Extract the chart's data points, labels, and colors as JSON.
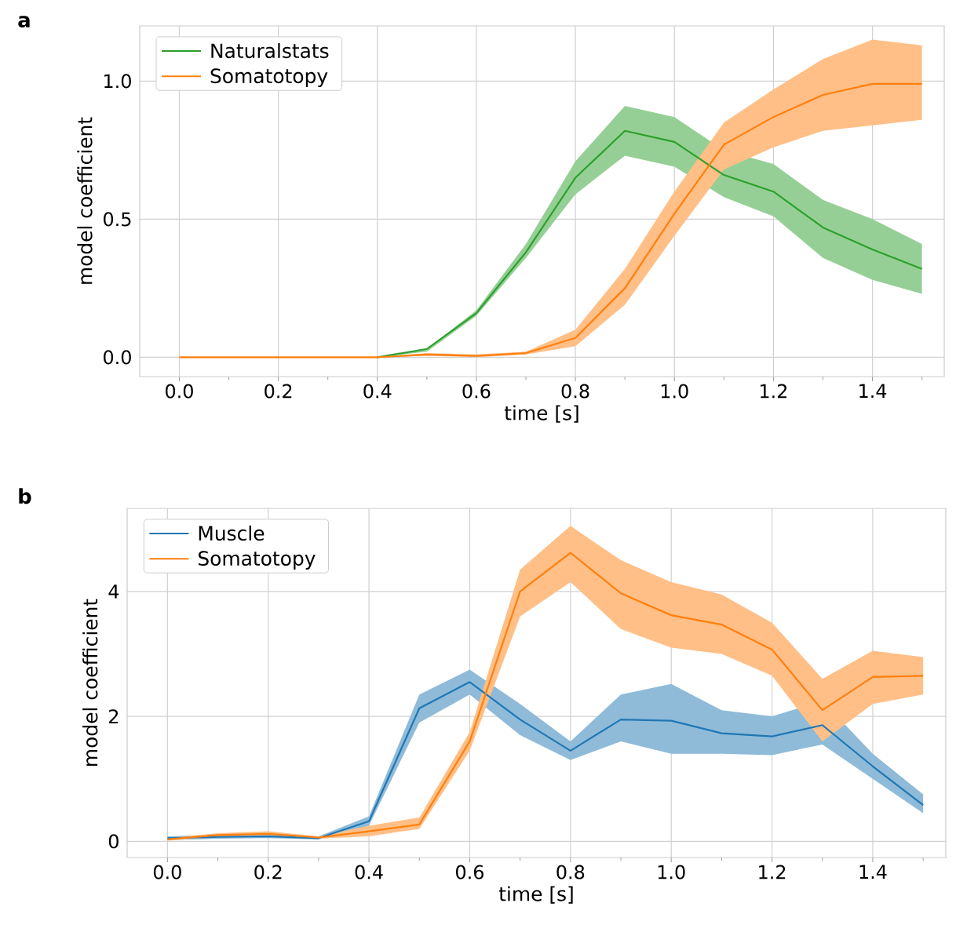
{
  "chart_data": [
    {
      "type": "line",
      "annotations": [
        "a"
      ],
      "xlabel": "time [s]",
      "ylabel": "model coefficient",
      "x": [
        0,
        0.1,
        0.2,
        0.3,
        0.4,
        0.5,
        0.6,
        0.7,
        0.8,
        0.9,
        1.0,
        1.1,
        1.2,
        1.3,
        1.4,
        1.5
      ],
      "xlim": [
        -0.08,
        1.545
      ],
      "ylim": [
        -0.07,
        1.2
      ],
      "xticks": [
        {
          "value": 0,
          "label": "0.0"
        },
        {
          "value": 0.1,
          "label": null
        },
        {
          "value": 0.2,
          "label": "0.2"
        },
        {
          "value": 0.3,
          "label": null
        },
        {
          "value": 0.4,
          "label": "0.4"
        },
        {
          "value": 0.5,
          "label": null
        },
        {
          "value": 0.6,
          "label": "0.6"
        },
        {
          "value": 0.7,
          "label": null
        },
        {
          "value": 0.8,
          "label": "0.8"
        },
        {
          "value": 0.9,
          "label": null
        },
        {
          "value": 1.0,
          "label": "1.0"
        },
        {
          "value": 1.1,
          "label": null
        },
        {
          "value": 1.2,
          "label": "1.2"
        },
        {
          "value": 1.3,
          "label": null
        },
        {
          "value": 1.4,
          "label": "1.4"
        },
        {
          "value": 1.5,
          "label": null
        }
      ],
      "yticks": [
        {
          "value": 0,
          "label": "0.0"
        },
        {
          "value": 0.5,
          "label": "0.5"
        },
        {
          "value": 1.0,
          "label": "1.0"
        }
      ],
      "grid": true,
      "legend": "top left",
      "series": [
        {
          "name": "Naturalstats",
          "color": "#2ca02c",
          "values": [
            null,
            null,
            null,
            null,
            0,
            0.03,
            0.16,
            0.38,
            0.65,
            0.82,
            0.78,
            0.66,
            0.6,
            0.47,
            0.39,
            0.32
          ],
          "lower": [
            0,
            0,
            0,
            0,
            0,
            0.02,
            0.15,
            0.36,
            0.59,
            0.73,
            0.69,
            0.58,
            0.51,
            0.36,
            0.28,
            0.23
          ],
          "upper": [
            0,
            0,
            0,
            0,
            0,
            0.03,
            0.17,
            0.41,
            0.71,
            0.91,
            0.87,
            0.75,
            0.7,
            0.57,
            0.5,
            0.41
          ]
        },
        {
          "name": "Somatotopy",
          "color": "#ff7f0e",
          "values": [
            0,
            0,
            0,
            0,
            0,
            0.01,
            0.005,
            0.015,
            0.07,
            0.25,
            0.52,
            0.77,
            0.87,
            0.95,
            0.99,
            0.99
          ],
          "lower": [
            0,
            0,
            0,
            0,
            0,
            0.005,
            0,
            0.01,
            0.04,
            0.19,
            0.44,
            0.68,
            0.76,
            0.82,
            0.84,
            0.86
          ],
          "upper": [
            0,
            0,
            0,
            0,
            0,
            0.015,
            0.01,
            0.02,
            0.1,
            0.32,
            0.6,
            0.85,
            0.97,
            1.08,
            1.15,
            1.13
          ]
        }
      ]
    },
    {
      "type": "line",
      "annotations": [
        "b"
      ],
      "xlabel": "time [s]",
      "ylabel": "model coefficient",
      "x": [
        0,
        0.1,
        0.2,
        0.3,
        0.4,
        0.5,
        0.6,
        0.7,
        0.8,
        0.9,
        1.0,
        1.1,
        1.2,
        1.3,
        1.4,
        1.5
      ],
      "xlim": [
        -0.08,
        1.545
      ],
      "ylim": [
        -0.26,
        5.33
      ],
      "xticks": [
        {
          "value": 0,
          "label": "0.0"
        },
        {
          "value": 0.1,
          "label": null
        },
        {
          "value": 0.2,
          "label": "0.2"
        },
        {
          "value": 0.3,
          "label": null
        },
        {
          "value": 0.4,
          "label": "0.4"
        },
        {
          "value": 0.5,
          "label": null
        },
        {
          "value": 0.6,
          "label": "0.6"
        },
        {
          "value": 0.7,
          "label": null
        },
        {
          "value": 0.8,
          "label": "0.8"
        },
        {
          "value": 0.9,
          "label": null
        },
        {
          "value": 1.0,
          "label": "1.0"
        },
        {
          "value": 1.1,
          "label": null
        },
        {
          "value": 1.2,
          "label": "1.2"
        },
        {
          "value": 1.3,
          "label": null
        },
        {
          "value": 1.4,
          "label": "1.4"
        },
        {
          "value": 1.5,
          "label": null
        }
      ],
      "yticks": [
        0,
        2,
        4
      ],
      "grid": true,
      "legend": "top left",
      "series": [
        {
          "name": "Muscle",
          "color": "#1f77b4",
          "values": [
            0.05,
            0.07,
            0.08,
            0.05,
            0.32,
            2.13,
            2.55,
            1.95,
            1.45,
            1.95,
            1.93,
            1.73,
            1.68,
            1.86,
            1.2,
            0.58
          ],
          "lower": [
            0.02,
            0.04,
            0.05,
            0.03,
            0.25,
            1.9,
            2.35,
            1.7,
            1.3,
            1.6,
            1.4,
            1.4,
            1.38,
            1.55,
            1.0,
            0.45
          ],
          "upper": [
            0.08,
            0.1,
            0.11,
            0.08,
            0.4,
            2.35,
            2.75,
            2.2,
            1.6,
            2.35,
            2.52,
            2.1,
            2.0,
            2.25,
            1.4,
            0.75
          ]
        },
        {
          "name": "Somatotopy",
          "color": "#ff7f0e",
          "values": [
            0.03,
            0.1,
            0.12,
            0.06,
            0.16,
            0.27,
            1.6,
            4.0,
            4.62,
            3.97,
            3.62,
            3.47,
            3.07,
            2.1,
            2.63,
            2.65
          ],
          "lower": [
            0.01,
            0.07,
            0.08,
            0.04,
            0.08,
            0.2,
            1.45,
            3.6,
            4.15,
            3.4,
            3.1,
            3.0,
            2.65,
            1.6,
            2.2,
            2.35
          ],
          "upper": [
            0.05,
            0.13,
            0.16,
            0.08,
            0.25,
            0.38,
            1.75,
            4.35,
            5.05,
            4.5,
            4.15,
            3.95,
            3.5,
            2.6,
            3.05,
            2.95
          ]
        }
      ]
    }
  ]
}
